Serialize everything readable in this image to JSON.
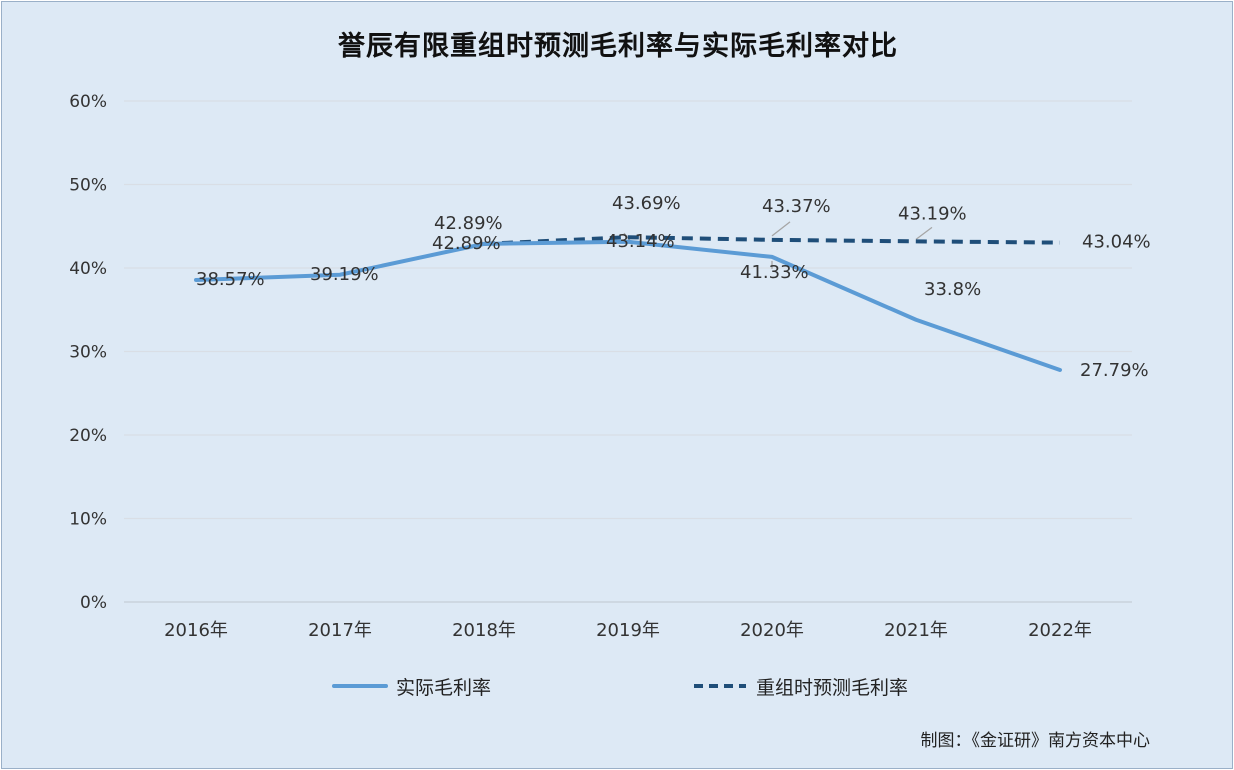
{
  "chart_data": {
    "type": "line",
    "title": "誉辰有限重组时预测毛利率与实际毛利率对比",
    "categories": [
      "2016年",
      "2017年",
      "2018年",
      "2019年",
      "2020年",
      "2021年",
      "2022年"
    ],
    "y_ticks": [
      "0%",
      "10%",
      "20%",
      "30%",
      "40%",
      "50%",
      "60%"
    ],
    "ylim": [
      0,
      60
    ],
    "grid": true,
    "legend_position": "bottom",
    "series": [
      {
        "name": "实际毛利率",
        "style": "solid",
        "color": "#5b9bd5",
        "values": [
          38.57,
          39.19,
          42.89,
          43.14,
          41.33,
          33.8,
          27.79
        ],
        "labels": [
          "38.57%",
          "39.19%",
          "42.89%",
          "43.14%",
          "41.33%",
          "33.8%",
          "27.79%"
        ]
      },
      {
        "name": "重组时预测毛利率",
        "style": "dashed",
        "color": "#1f4e79",
        "values": [
          null,
          null,
          42.89,
          43.69,
          43.37,
          43.19,
          43.04
        ],
        "labels": [
          "",
          "",
          "42.89%",
          "43.69%",
          "43.37%",
          "43.19%",
          "43.04%"
        ]
      }
    ]
  },
  "source_note": "制图：《金证研》南方资本中心"
}
